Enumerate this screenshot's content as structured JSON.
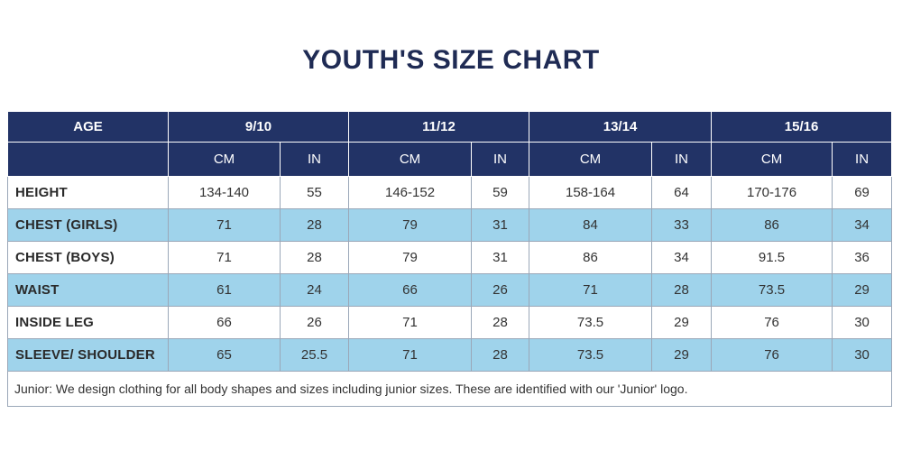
{
  "title": "YOUTH'S SIZE CHART",
  "table": {
    "age_header": "AGE",
    "age_groups": [
      "9/10",
      "11/12",
      "13/14",
      "15/16"
    ],
    "units": [
      "CM",
      "IN"
    ],
    "rows": [
      {
        "label": "HEIGHT",
        "shaded": false,
        "values": [
          "134-140",
          "55",
          "146-152",
          "59",
          "158-164",
          "64",
          "170-176",
          "69"
        ]
      },
      {
        "label": "CHEST (GIRLS)",
        "shaded": true,
        "values": [
          "71",
          "28",
          "79",
          "31",
          "84",
          "33",
          "86",
          "34"
        ]
      },
      {
        "label": "CHEST (BOYS)",
        "shaded": false,
        "values": [
          "71",
          "28",
          "79",
          "31",
          "86",
          "34",
          "91.5",
          "36"
        ]
      },
      {
        "label": "WAIST",
        "shaded": true,
        "values": [
          "61",
          "24",
          "66",
          "26",
          "71",
          "28",
          "73.5",
          "29"
        ]
      },
      {
        "label": "INSIDE LEG",
        "shaded": false,
        "values": [
          "66",
          "26",
          "71",
          "28",
          "73.5",
          "29",
          "76",
          "30"
        ]
      },
      {
        "label": "SLEEVE/ SHOULDER",
        "shaded": true,
        "values": [
          "65",
          "25.5",
          "71",
          "28",
          "73.5",
          "29",
          "76",
          "30"
        ]
      }
    ],
    "note": "Junior: We design clothing for all body shapes and sizes including junior sizes. These are identified with our 'Junior' logo."
  },
  "colors": {
    "header_bg": "#223366",
    "shaded_row": "#9fd3eb",
    "title": "#1f2b54"
  }
}
